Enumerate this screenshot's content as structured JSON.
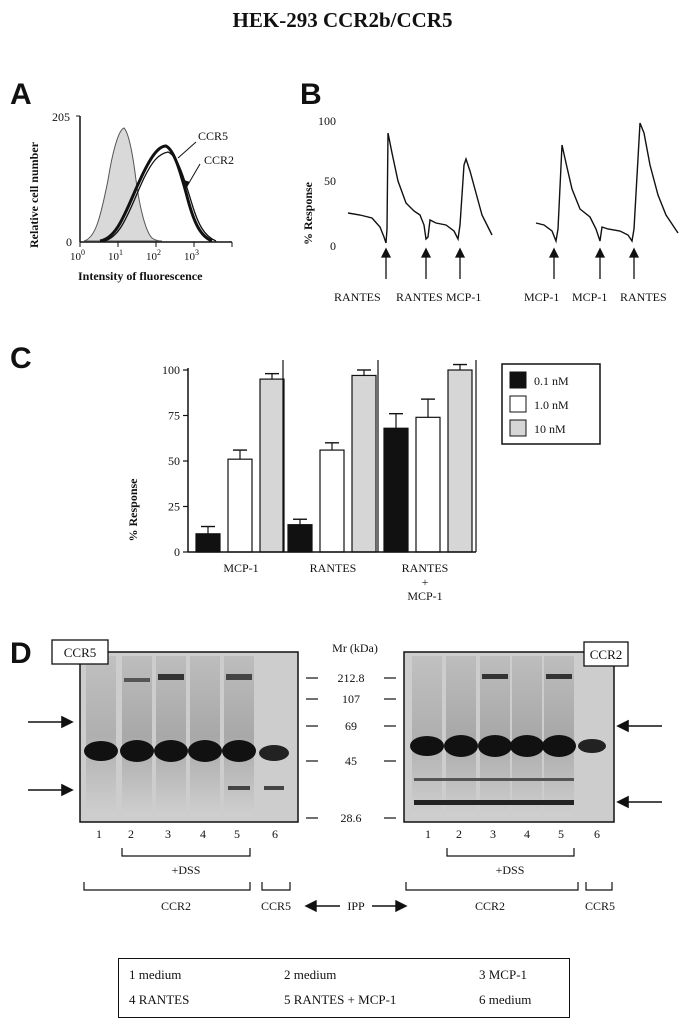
{
  "figure": {
    "title": "HEK-293 CCR2b/CCR5",
    "panel_labels": [
      "A",
      "B",
      "C",
      "D"
    ]
  },
  "panel_a": {
    "ylabel": "Relative cell number",
    "xlabel": "Intensity of fluorescence",
    "y_ticks": [
      "205",
      "0"
    ],
    "x_ticks": [
      "10",
      "10",
      "10",
      "10"
    ],
    "x_tick_exps": [
      "0",
      "1",
      "2",
      "3"
    ],
    "curve_labels": [
      "CCR5",
      "CCR2"
    ]
  },
  "panel_b": {
    "ylabel": "% Response",
    "y_ticks": [
      "100",
      "50",
      "0"
    ],
    "left_trace_labels": [
      "RANTES",
      "RANTES",
      "MCP-1"
    ],
    "right_trace_labels": [
      "MCP-1",
      "MCP-1",
      "RANTES"
    ]
  },
  "panel_c": {
    "ylabel": "% Response",
    "y_ticks": [
      "100",
      "75",
      "50",
      "25",
      "0"
    ],
    "group_labels": [
      "MCP-1",
      "RANTES",
      "RANTES",
      "+",
      "MCP-1"
    ],
    "legend": [
      "0.1 nM",
      "1.0 nM",
      "10 nM"
    ]
  },
  "chart_data": {
    "type": "bar",
    "title": "",
    "xlabel": "",
    "ylabel": "% Response",
    "ylim": [
      0,
      100
    ],
    "categories": [
      "MCP-1",
      "RANTES",
      "RANTES + MCP-1"
    ],
    "series": [
      {
        "name": "0.1 nM",
        "values": [
          10,
          15,
          68
        ],
        "errors": [
          4,
          3,
          8
        ],
        "color": "#111111"
      },
      {
        "name": "1.0 nM",
        "values": [
          51,
          56,
          74
        ],
        "errors": [
          5,
          4,
          10
        ],
        "color": "#ffffff"
      },
      {
        "name": "10 nM",
        "values": [
          95,
          97,
          100
        ],
        "errors": [
          3,
          3,
          3
        ],
        "color": "#d6d6d6"
      }
    ],
    "legend_position": "top-right",
    "grid": false
  },
  "panel_d": {
    "mr_label": "Mr (kDa)",
    "markers": [
      "212.8",
      "107",
      "69",
      "45",
      "28.6"
    ],
    "left_gel_label": "CCR5",
    "right_gel_label": "CCR2",
    "lanes": [
      "1",
      "2",
      "3",
      "4",
      "5",
      "6"
    ],
    "dss_label": "+DSS",
    "ccr2_label": "CCR2",
    "ccr5_label": "CCR5",
    "ipp_label": "IPP"
  },
  "legend_box": {
    "items": [
      "1  medium",
      "2  medium",
      "3  MCP-1",
      "4  RANTES",
      "5  RANTES + MCP-1",
      "6  medium"
    ]
  }
}
